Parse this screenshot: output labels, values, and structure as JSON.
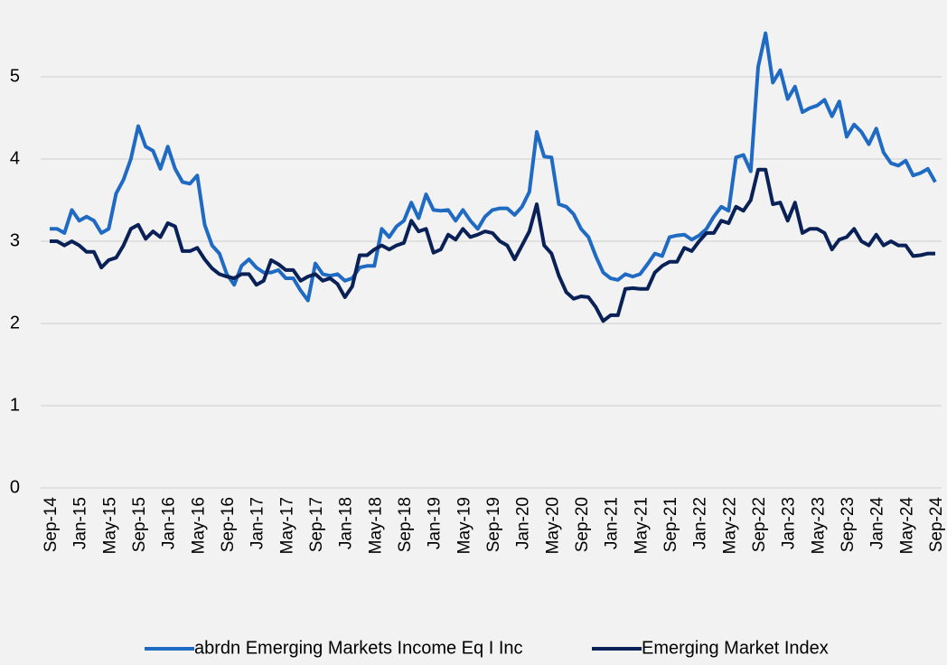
{
  "chart_data": {
    "type": "line",
    "categories": [
      "Sep-14",
      null,
      null,
      null,
      "Jan-15",
      null,
      null,
      null,
      "May-15",
      null,
      null,
      null,
      "Sep-15",
      null,
      null,
      null,
      "Jan-16",
      null,
      null,
      null,
      "May-16",
      null,
      null,
      null,
      "Sep-16",
      null,
      null,
      null,
      "Jan-17",
      null,
      null,
      null,
      "May-17",
      null,
      null,
      null,
      "Sep-17",
      null,
      null,
      null,
      "Jan-18",
      null,
      null,
      null,
      "May-18",
      null,
      null,
      null,
      "Sep-18",
      null,
      null,
      null,
      "Jan-19",
      null,
      null,
      null,
      "May-19",
      null,
      null,
      null,
      "Sep-19",
      null,
      null,
      null,
      "Jan-20",
      null,
      null,
      null,
      "May-20",
      null,
      null,
      null,
      "Sep-20",
      null,
      null,
      null,
      "Jan-21",
      null,
      null,
      null,
      "May-21",
      null,
      null,
      null,
      "Sep-21",
      null,
      null,
      null,
      "Jan-22",
      null,
      null,
      null,
      "May-22",
      null,
      null,
      null,
      "Sep-22",
      null,
      null,
      null,
      "Jan-23",
      null,
      null,
      null,
      "May-23",
      null,
      null,
      null,
      "Sep-23",
      null,
      null,
      null,
      "Jan-24",
      null,
      null,
      null,
      "May-24",
      null,
      null,
      null,
      "Sep-24"
    ],
    "series": [
      {
        "name": "abrdn Emerging Markets Income Eq I Inc",
        "color": "#1f6ac2",
        "values": [
          3.15,
          3.15,
          3.1,
          3.38,
          3.25,
          3.3,
          3.25,
          3.1,
          3.15,
          3.58,
          3.75,
          4.0,
          4.4,
          4.15,
          4.1,
          3.88,
          4.15,
          3.88,
          3.72,
          3.7,
          3.8,
          3.2,
          2.95,
          2.85,
          2.6,
          2.47,
          2.7,
          2.78,
          2.68,
          2.62,
          2.62,
          2.65,
          2.55,
          2.55,
          2.4,
          2.28,
          2.73,
          2.6,
          2.58,
          2.6,
          2.52,
          2.55,
          2.68,
          2.7,
          2.7,
          3.15,
          3.05,
          3.18,
          3.25,
          3.47,
          3.28,
          3.57,
          3.38,
          3.37,
          3.38,
          3.25,
          3.38,
          3.25,
          3.15,
          3.3,
          3.38,
          3.4,
          3.4,
          3.32,
          3.42,
          3.6,
          4.33,
          4.03,
          4.02,
          3.45,
          3.42,
          3.33,
          3.15,
          3.05,
          2.82,
          2.62,
          2.55,
          2.53,
          2.6,
          2.57,
          2.6,
          2.72,
          2.85,
          2.82,
          3.05,
          3.07,
          3.08,
          3.02,
          3.07,
          3.15,
          3.3,
          3.42,
          3.37,
          4.02,
          4.05,
          3.85,
          5.12,
          5.53,
          4.93,
          5.08,
          4.73,
          4.88,
          4.57,
          4.62,
          4.65,
          4.72,
          4.52,
          4.7,
          4.27,
          4.42,
          4.33,
          4.18,
          4.37,
          4.08,
          3.95,
          3.92,
          3.98,
          3.8,
          3.83,
          3.88,
          3.72
        ]
      },
      {
        "name": "Emerging Market Index",
        "color": "#0a2157",
        "values": [
          3.0,
          3.0,
          2.95,
          3.0,
          2.95,
          2.87,
          2.87,
          2.68,
          2.77,
          2.8,
          2.95,
          3.15,
          3.2,
          3.03,
          3.12,
          3.05,
          3.22,
          3.18,
          2.88,
          2.88,
          2.92,
          2.78,
          2.67,
          2.6,
          2.57,
          2.55,
          2.6,
          2.6,
          2.47,
          2.52,
          2.77,
          2.72,
          2.65,
          2.65,
          2.52,
          2.57,
          2.6,
          2.52,
          2.55,
          2.48,
          2.32,
          2.45,
          2.83,
          2.83,
          2.9,
          2.95,
          2.9,
          2.95,
          2.98,
          3.25,
          3.12,
          3.15,
          2.86,
          2.9,
          3.08,
          3.02,
          3.15,
          3.05,
          3.08,
          3.12,
          3.1,
          3.0,
          2.95,
          2.78,
          2.95,
          3.12,
          3.45,
          2.95,
          2.85,
          2.58,
          2.38,
          2.3,
          2.33,
          2.32,
          2.2,
          2.03,
          2.1,
          2.1,
          2.42,
          2.43,
          2.42,
          2.42,
          2.62,
          2.7,
          2.75,
          2.75,
          2.92,
          2.88,
          3.0,
          3.1,
          3.1,
          3.25,
          3.22,
          3.42,
          3.37,
          3.5,
          3.87,
          3.87,
          3.45,
          3.47,
          3.25,
          3.47,
          3.1,
          3.15,
          3.15,
          3.1,
          2.9,
          3.02,
          3.05,
          3.15,
          3.0,
          2.95,
          3.08,
          2.95,
          3.0,
          2.95,
          2.95,
          2.82,
          2.83,
          2.85,
          2.85
        ]
      }
    ],
    "ylim": [
      0,
      6
    ],
    "yticks": [
      0,
      1,
      2,
      3,
      4,
      5,
      6
    ],
    "grid": true,
    "legend": "bottom"
  }
}
